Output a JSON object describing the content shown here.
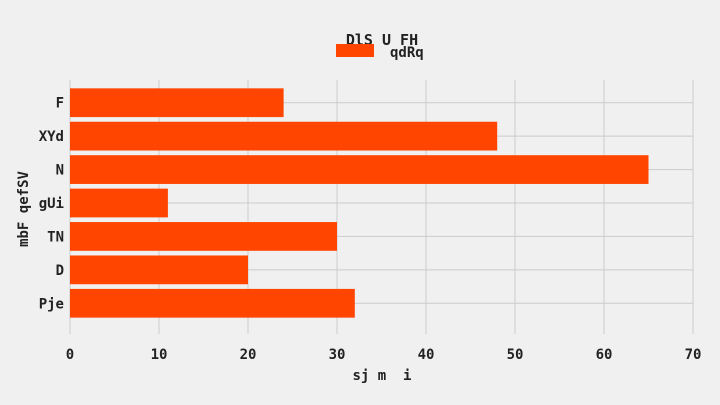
{
  "chart_data": {
    "type": "bar",
    "orientation": "horizontal",
    "title": "DlS U FH",
    "xlabel": "sj m  i",
    "ylabel": "mbF qefSV",
    "categories": [
      "F",
      "XYd",
      "N",
      "gUi",
      "TN",
      "D",
      "Pje"
    ],
    "series": [
      {
        "name": "qdRq",
        "values": [
          24,
          48,
          65,
          11,
          30,
          20,
          32
        ],
        "color": "#ff4500"
      }
    ],
    "xlim": [
      0,
      70
    ],
    "xticks": [
      0,
      10,
      20,
      30,
      40,
      50,
      60,
      70
    ],
    "grid": true,
    "legend_position": "top-center"
  }
}
